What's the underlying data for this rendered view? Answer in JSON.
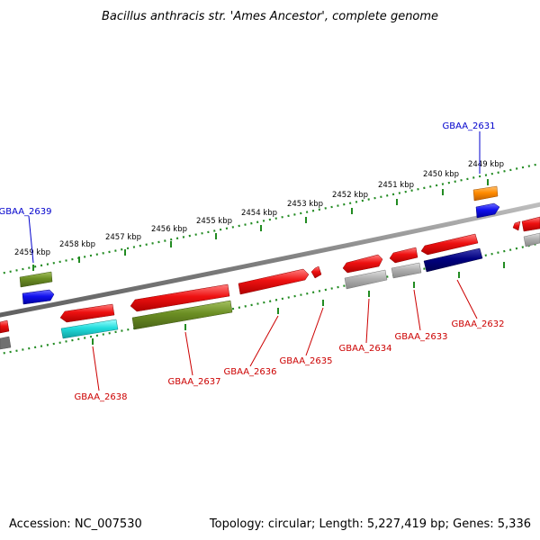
{
  "title": "Bacillus anthracis str. 'Ames Ancestor', complete genome",
  "accession": "Accession: NC_007530",
  "topology": "Topology: circular; Length: 5,227,419 bp; Genes: 5,336",
  "colors": {
    "backbone": "#808080",
    "ticks": "#228b22",
    "label_red": "#cc0000",
    "label_blue": "#0000cc",
    "red": "#ee1111",
    "olive": "#6b8e23",
    "blue": "#1111ee",
    "cyan": "#22dddd",
    "gray": "#b0b0b0",
    "navy": "#000080",
    "orange": "#ff8c00"
  },
  "kbp_labels": [
    "2459 kbp",
    "2458 kbp",
    "2457 kbp",
    "2456 kbp",
    "2455 kbp",
    "2454 kbp",
    "2453 kbp",
    "2452 kbp",
    "2451 kbp",
    "2450 kbp",
    "2449 kbp"
  ],
  "gene_labels": {
    "g2631": "GBAA_2631",
    "g2632": "GBAA_2632",
    "g2633": "GBAA_2633",
    "g2634": "GBAA_2634",
    "g2635": "GBAA_2635",
    "g2636": "GBAA_2636",
    "g2637": "GBAA_2637",
    "g2638": "GBAA_2638",
    "g2639": "GBAA_2639"
  }
}
